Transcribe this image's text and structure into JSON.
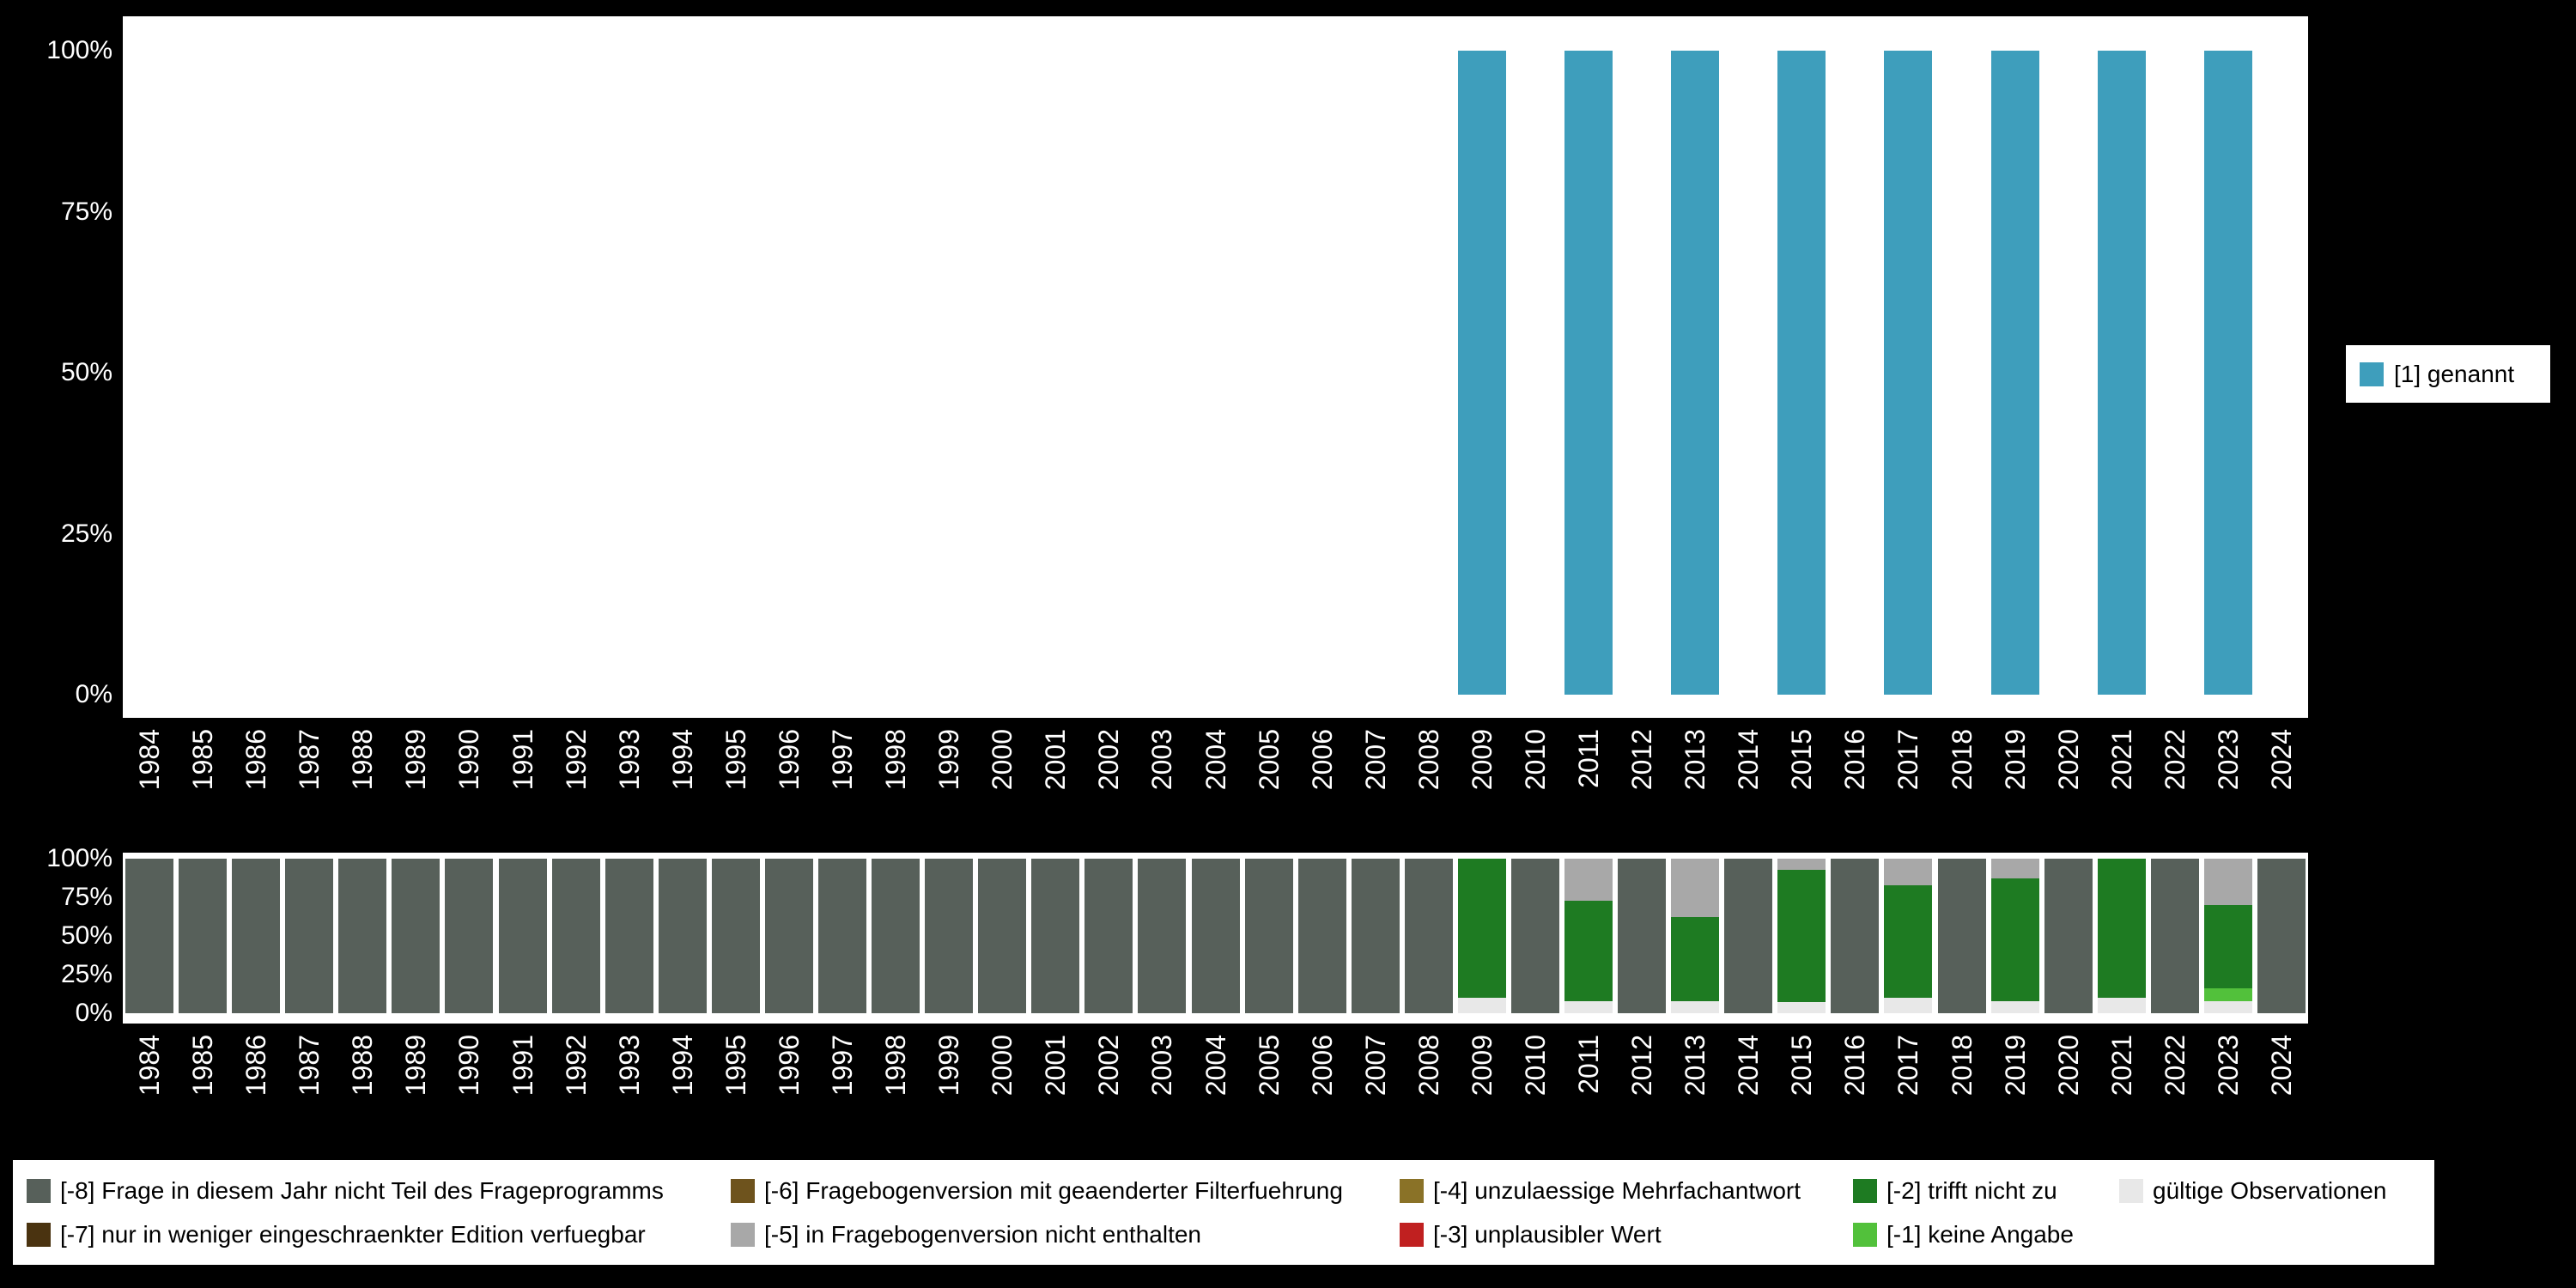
{
  "figure": {
    "background": "#000000",
    "plot_background": "#ffffff",
    "tick_color": "#ffffff"
  },
  "legend_right": {
    "items": [
      {
        "label": "[1] genannt",
        "color": "#3E9EBC"
      }
    ]
  },
  "legend_bottom": {
    "rows": [
      [
        {
          "label": "[-8] Frage in diesem Jahr nicht Teil des Frageprogramms",
          "color": "#57605A"
        },
        {
          "label": "[-6] Fragebogenversion mit geaenderter Filterfuehrung",
          "color": "#6E531D"
        },
        {
          "label": "[-4] unzulaessige Mehrfachantwort",
          "color": "#8A7227"
        },
        {
          "label": "[-2] trifft nicht zu",
          "color": "#1E7B22"
        },
        {
          "label": "gültige Observationen",
          "color": "#E8E8E8"
        }
      ],
      [
        {
          "label": "[-7] nur in weniger eingeschraenkter Edition verfuegbar",
          "color": "#4A3310"
        },
        {
          "label": "[-5] in Fragebogenversion nicht enthalten",
          "color": "#A8A8A8"
        },
        {
          "label": "[-3] unplausibler Wert",
          "color": "#C02020"
        },
        {
          "label": "[-1] keine Angabe",
          "color": "#52C13B"
        }
      ]
    ]
  },
  "chart_data": [
    {
      "type": "bar",
      "stacked": false,
      "categories": [
        "1984",
        "1985",
        "1986",
        "1987",
        "1988",
        "1989",
        "1990",
        "1991",
        "1992",
        "1993",
        "1994",
        "1995",
        "1996",
        "1997",
        "1998",
        "1999",
        "2000",
        "2001",
        "2002",
        "2003",
        "2004",
        "2005",
        "2006",
        "2007",
        "2008",
        "2009",
        "2010",
        "2011",
        "2012",
        "2013",
        "2014",
        "2015",
        "2016",
        "2017",
        "2018",
        "2019",
        "2020",
        "2021",
        "2022",
        "2023",
        "2024"
      ],
      "series": [
        {
          "name": "[1] genannt",
          "color": "#3E9EBC",
          "values": [
            null,
            null,
            null,
            null,
            null,
            null,
            null,
            null,
            null,
            null,
            null,
            null,
            null,
            null,
            null,
            null,
            null,
            null,
            null,
            null,
            null,
            null,
            null,
            null,
            null,
            100,
            null,
            100,
            null,
            100,
            null,
            100,
            null,
            100,
            null,
            100,
            null,
            100,
            null,
            100,
            null
          ]
        }
      ],
      "ylim": [
        0,
        100
      ],
      "yticks": [
        0,
        25,
        50,
        75,
        100
      ],
      "ytick_labels": [
        "0%",
        "25%",
        "50%",
        "75%",
        "100%"
      ],
      "legend_position": "right",
      "grid": false,
      "value_unit": "percent"
    },
    {
      "type": "bar",
      "stacked": true,
      "categories": [
        "1984",
        "1985",
        "1986",
        "1987",
        "1988",
        "1989",
        "1990",
        "1991",
        "1992",
        "1993",
        "1994",
        "1995",
        "1996",
        "1997",
        "1998",
        "1999",
        "2000",
        "2001",
        "2002",
        "2003",
        "2004",
        "2005",
        "2006",
        "2007",
        "2008",
        "2009",
        "2010",
        "2011",
        "2012",
        "2013",
        "2014",
        "2015",
        "2016",
        "2017",
        "2018",
        "2019",
        "2020",
        "2021",
        "2022",
        "2023",
        "2024"
      ],
      "series": [
        {
          "name": "gültige Observationen",
          "color": "#E8E8E8",
          "values": [
            0,
            0,
            0,
            0,
            0,
            0,
            0,
            0,
            0,
            0,
            0,
            0,
            0,
            0,
            0,
            0,
            0,
            0,
            0,
            0,
            0,
            0,
            0,
            0,
            0,
            10,
            0,
            8,
            0,
            8,
            0,
            7,
            0,
            10,
            0,
            8,
            0,
            10,
            0,
            8,
            0
          ]
        },
        {
          "name": "[-1] keine Angabe",
          "color": "#52C13B",
          "values": [
            0,
            0,
            0,
            0,
            0,
            0,
            0,
            0,
            0,
            0,
            0,
            0,
            0,
            0,
            0,
            0,
            0,
            0,
            0,
            0,
            0,
            0,
            0,
            0,
            0,
            0,
            0,
            0,
            0,
            0,
            0,
            0,
            0,
            0,
            0,
            0,
            0,
            0,
            0,
            8,
            0
          ]
        },
        {
          "name": "[-2] trifft nicht zu",
          "color": "#1E7B22",
          "values": [
            0,
            0,
            0,
            0,
            0,
            0,
            0,
            0,
            0,
            0,
            0,
            0,
            0,
            0,
            0,
            0,
            0,
            0,
            0,
            0,
            0,
            0,
            0,
            0,
            0,
            90,
            0,
            65,
            0,
            54,
            0,
            86,
            0,
            73,
            0,
            79,
            0,
            90,
            0,
            54,
            0
          ]
        },
        {
          "name": "[-3] unplausibler Wert",
          "color": "#C02020",
          "values": [
            0,
            0,
            0,
            0,
            0,
            0,
            0,
            0,
            0,
            0,
            0,
            0,
            0,
            0,
            0,
            0,
            0,
            0,
            0,
            0,
            0,
            0,
            0,
            0,
            0,
            0,
            0,
            0,
            0,
            0,
            0,
            0,
            0,
            0,
            0,
            0,
            0,
            0,
            0,
            0,
            0
          ]
        },
        {
          "name": "[-4] unzulaessige Mehrfachantwort",
          "color": "#8A7227",
          "values": [
            0,
            0,
            0,
            0,
            0,
            0,
            0,
            0,
            0,
            0,
            0,
            0,
            0,
            0,
            0,
            0,
            0,
            0,
            0,
            0,
            0,
            0,
            0,
            0,
            0,
            0,
            0,
            0,
            0,
            0,
            0,
            0,
            0,
            0,
            0,
            0,
            0,
            0,
            0,
            0,
            0
          ]
        },
        {
          "name": "[-5] in Fragebogenversion nicht enthalten",
          "color": "#A8A8A8",
          "values": [
            0,
            0,
            0,
            0,
            0,
            0,
            0,
            0,
            0,
            0,
            0,
            0,
            0,
            0,
            0,
            0,
            0,
            0,
            0,
            0,
            0,
            0,
            0,
            0,
            0,
            0,
            0,
            27,
            0,
            38,
            0,
            7,
            0,
            17,
            0,
            13,
            0,
            0,
            0,
            30,
            0
          ]
        },
        {
          "name": "[-6] Fragebogenversion mit geaenderter Filterfuehrung",
          "color": "#6E531D",
          "values": [
            0,
            0,
            0,
            0,
            0,
            0,
            0,
            0,
            0,
            0,
            0,
            0,
            0,
            0,
            0,
            0,
            0,
            0,
            0,
            0,
            0,
            0,
            0,
            0,
            0,
            0,
            0,
            0,
            0,
            0,
            0,
            0,
            0,
            0,
            0,
            0,
            0,
            0,
            0,
            0,
            0
          ]
        },
        {
          "name": "[-7] nur in weniger eingeschraenkter Edition verfuegbar",
          "color": "#4A3310",
          "values": [
            0,
            0,
            0,
            0,
            0,
            0,
            0,
            0,
            0,
            0,
            0,
            0,
            0,
            0,
            0,
            0,
            0,
            0,
            0,
            0,
            0,
            0,
            0,
            0,
            0,
            0,
            0,
            0,
            0,
            0,
            0,
            0,
            0,
            0,
            0,
            0,
            0,
            0,
            0,
            0,
            0
          ]
        },
        {
          "name": "[-8] Frage in diesem Jahr nicht Teil des Frageprogramms",
          "color": "#57605A",
          "values": [
            100,
            100,
            100,
            100,
            100,
            100,
            100,
            100,
            100,
            100,
            100,
            100,
            100,
            100,
            100,
            100,
            100,
            100,
            100,
            100,
            100,
            100,
            100,
            100,
            100,
            0,
            100,
            0,
            100,
            0,
            100,
            0,
            100,
            0,
            100,
            0,
            100,
            0,
            100,
            0,
            100
          ]
        }
      ],
      "ylim": [
        0,
        100
      ],
      "yticks": [
        0,
        25,
        50,
        75,
        100
      ],
      "ytick_labels": [
        "0%",
        "25%",
        "50%",
        "75%",
        "100%"
      ],
      "legend_position": "bottom",
      "grid": false,
      "value_unit": "percent"
    }
  ]
}
